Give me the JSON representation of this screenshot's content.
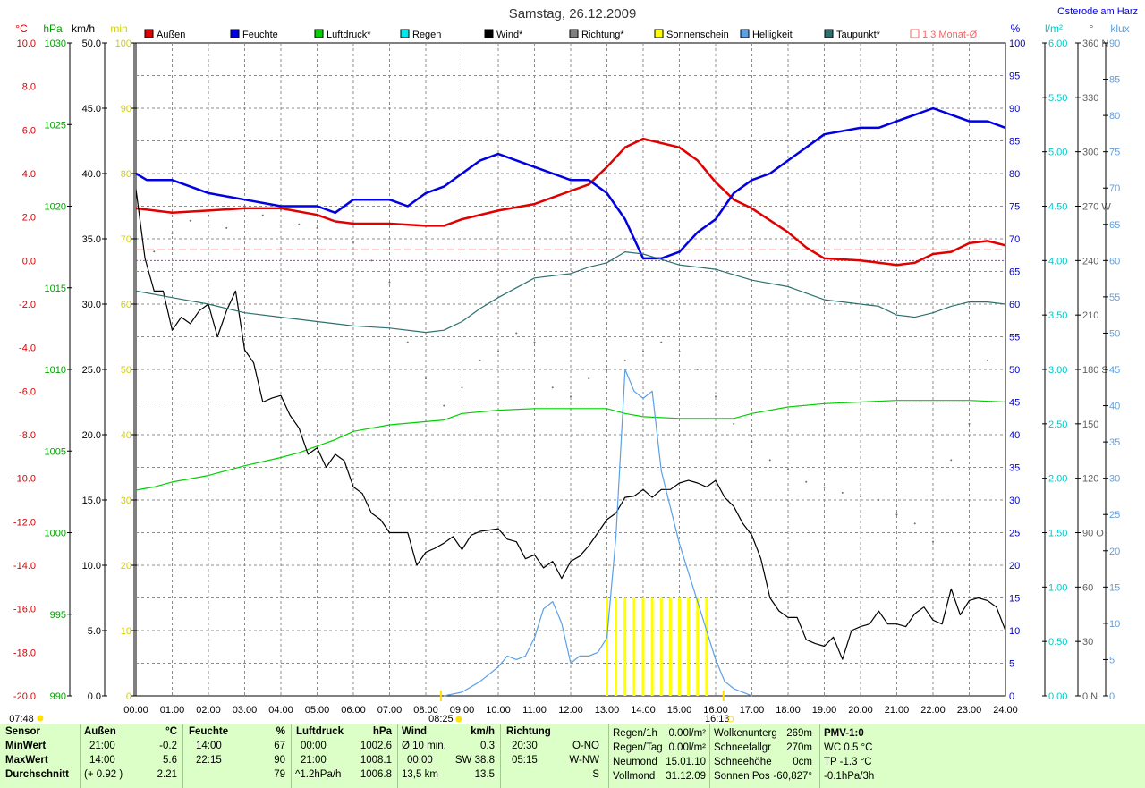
{
  "title": "Samstag, 26.12.2009",
  "location": "Osterode am Harz",
  "legend": [
    {
      "label": "Außen",
      "color": "#e00000",
      "marker": "filled"
    },
    {
      "label": "Feuchte",
      "color": "#0000e0",
      "marker": "filled"
    },
    {
      "label": "Luftdruck*",
      "color": "#00d000",
      "marker": "filled"
    },
    {
      "label": "Regen",
      "color": "#00e8e8",
      "marker": "filled"
    },
    {
      "label": "Wind*",
      "color": "#000000",
      "marker": "filled"
    },
    {
      "label": "Richtung*",
      "color": "#808080",
      "marker": "filled"
    },
    {
      "label": "Sonnenschein",
      "color": "#ffff00",
      "marker": "filled"
    },
    {
      "label": "Helligkeit",
      "color": "#5aa0e6",
      "marker": "filled"
    },
    {
      "label": "Taupunkt*",
      "color": "#2e7070",
      "marker": "filled"
    },
    {
      "label": "1.3 Monat-Ø",
      "color": "#ff6060",
      "marker": "hollow"
    }
  ],
  "axis_units": {
    "temp": "°C",
    "pressure": "hPa",
    "wind": "km/h",
    "sun": "min",
    "humidity": "%",
    "rain": "l/m²",
    "direction": "°",
    "light": "klux"
  },
  "axes": {
    "temp": {
      "labels": [
        "10.0",
        "8.0",
        "6.0",
        "4.0",
        "2.0",
        "0.0",
        "-2.0",
        "-4.0",
        "-6.0",
        "-8.0",
        "-10.0",
        "-12.0",
        "-14.0",
        "-16.0",
        "-18.0",
        "-20.0"
      ],
      "color": "#e00000"
    },
    "pressure": {
      "labels": [
        "1030",
        "1025",
        "1020",
        "1015",
        "1010",
        "1005",
        "1000",
        "995",
        "990"
      ],
      "color": "#00a000"
    },
    "wind": {
      "labels": [
        "50.0",
        "45.0",
        "40.0",
        "35.0",
        "30.0",
        "25.0",
        "20.0",
        "15.0",
        "10.0",
        "5.0",
        "0.0"
      ],
      "color": "#000000"
    },
    "sun": {
      "labels": [
        "100",
        "90",
        "80",
        "70",
        "60",
        "50",
        "40",
        "30",
        "20",
        "10",
        "0"
      ],
      "color": "#d0d000"
    },
    "humidity": {
      "labels": [
        "100",
        "95",
        "90",
        "85",
        "80",
        "75",
        "70",
        "65",
        "60",
        "55",
        "50",
        "45",
        "40",
        "35",
        "30",
        "25",
        "20",
        "15",
        "10",
        "5",
        "0"
      ],
      "color": "#0000e0"
    },
    "rain": {
      "labels": [
        "6.00",
        "5.50",
        "5.00",
        "4.50",
        "4.00",
        "3.50",
        "3.00",
        "2.50",
        "2.00",
        "1.50",
        "1.00",
        "0.50",
        "0.00"
      ],
      "color": "#00c8c8"
    },
    "direction": {
      "labels": [
        "360 N",
        "330",
        "300",
        "270 W",
        "240",
        "210",
        "180 S",
        "150",
        "120",
        "90 O",
        "60",
        "30",
        "0 N"
      ],
      "color": "#606060"
    },
    "light": {
      "labels": [
        "90",
        "85",
        "80",
        "75",
        "70",
        "65",
        "60",
        "55",
        "50",
        "45",
        "40",
        "35",
        "30",
        "25",
        "20",
        "15",
        "10",
        "5",
        "0"
      ],
      "color": "#5aa0e6"
    }
  },
  "time_labels": [
    "00:00",
    "01:00",
    "02:00",
    "03:00",
    "04:00",
    "05:00",
    "06:00",
    "07:00",
    "08:00",
    "09:00",
    "10:00",
    "11:00",
    "12:00",
    "13:00",
    "14:00",
    "15:00",
    "16:00",
    "17:00",
    "18:00",
    "19:00",
    "20:00",
    "21:00",
    "22:00",
    "23:00",
    "24:00"
  ],
  "sun_times": {
    "rise": "08:25",
    "set": "16:13",
    "twilight_start": "07:48"
  },
  "chart_data": {
    "type": "line",
    "title": "Samstag, 26.12.2009",
    "x_unit": "hour of day",
    "xlim": [
      0,
      24
    ],
    "series": [
      {
        "name": "Außen",
        "axis": "temp",
        "unit": "°C",
        "color": "#e00000",
        "x": [
          0,
          1,
          2,
          3,
          4,
          5,
          5.5,
          6,
          7,
          8,
          8.5,
          9,
          10,
          11,
          12,
          12.5,
          13,
          13.5,
          14,
          15,
          15.5,
          16,
          16.5,
          17,
          18,
          18.5,
          19,
          20,
          20.5,
          21,
          21.5,
          22,
          22.5,
          23,
          23.5,
          24
        ],
        "y": [
          2.4,
          2.2,
          2.3,
          2.4,
          2.4,
          2.1,
          1.8,
          1.7,
          1.7,
          1.6,
          1.6,
          1.9,
          2.3,
          2.6,
          3.2,
          3.5,
          4.3,
          5.2,
          5.6,
          5.2,
          4.6,
          3.6,
          2.8,
          2.4,
          1.3,
          0.6,
          0.1,
          0.0,
          -0.1,
          -0.2,
          -0.1,
          0.3,
          0.4,
          0.8,
          0.9,
          0.7
        ]
      },
      {
        "name": "Feuchte",
        "axis": "humidity",
        "unit": "%",
        "color": "#0000e0",
        "x": [
          0,
          0.3,
          1,
          1.5,
          2,
          3,
          4,
          5,
          5.5,
          6,
          7,
          7.5,
          8,
          8.5,
          9,
          9.5,
          10,
          11,
          12,
          12.5,
          13,
          13.5,
          14,
          14.5,
          15,
          15.5,
          16,
          16.5,
          17,
          17.5,
          18,
          18.5,
          19,
          20,
          20.5,
          21,
          21.5,
          22,
          22.5,
          23,
          23.5,
          24
        ],
        "y": [
          80,
          79,
          79,
          78,
          77,
          76,
          75,
          75,
          74,
          76,
          76,
          75,
          77,
          78,
          80,
          82,
          83,
          81,
          79,
          79,
          77,
          73,
          67,
          67,
          68,
          71,
          73,
          77,
          79,
          80,
          82,
          84,
          86,
          87,
          87,
          88,
          89,
          90,
          89,
          88,
          88,
          87
        ]
      },
      {
        "name": "Luftdruck*",
        "axis": "pressure",
        "unit": "hPa",
        "color": "#00d000",
        "x": [
          0,
          0.5,
          1,
          2,
          3,
          4,
          4.5,
          5,
          5.5,
          6,
          7,
          8,
          8.5,
          9,
          10,
          11,
          12,
          13,
          13.5,
          14,
          15,
          16,
          16.5,
          17,
          18,
          19,
          20,
          21,
          22,
          23,
          24
        ],
        "y": [
          1002.6,
          1002.8,
          1003.1,
          1003.5,
          1004.1,
          1004.6,
          1004.9,
          1005.3,
          1005.7,
          1006.2,
          1006.6,
          1006.8,
          1006.9,
          1007.3,
          1007.5,
          1007.6,
          1007.6,
          1007.6,
          1007.3,
          1007.1,
          1007.0,
          1007.0,
          1007.0,
          1007.3,
          1007.7,
          1007.9,
          1008.0,
          1008.1,
          1008.1,
          1008.1,
          1008.0
        ]
      },
      {
        "name": "Wind*",
        "axis": "wind",
        "unit": "km/h",
        "color": "#000000",
        "x": [
          0,
          0.25,
          0.5,
          0.75,
          1,
          1.25,
          1.5,
          1.75,
          2,
          2.25,
          2.5,
          2.75,
          3,
          3.25,
          3.5,
          3.75,
          4,
          4.25,
          4.5,
          4.75,
          5,
          5.25,
          5.5,
          5.75,
          6,
          6.25,
          6.5,
          6.75,
          7,
          7.25,
          7.5,
          7.75,
          8,
          8.25,
          8.5,
          8.75,
          9,
          9.25,
          9.5,
          9.75,
          10,
          10.25,
          10.5,
          10.75,
          11,
          11.25,
          11.5,
          11.75,
          12,
          12.25,
          12.5,
          12.75,
          13,
          13.25,
          13.5,
          13.75,
          14,
          14.25,
          14.5,
          14.75,
          15,
          15.25,
          15.5,
          15.75,
          16,
          16.25,
          16.5,
          16.75,
          17,
          17.25,
          17.5,
          17.75,
          18,
          18.25,
          18.5,
          18.75,
          19,
          19.25,
          19.5,
          19.75,
          20,
          20.25,
          20.5,
          20.75,
          21,
          21.25,
          21.5,
          21.75,
          22,
          22.25,
          22.5,
          22.75,
          23,
          23.25,
          23.5,
          23.75,
          24
        ],
        "y": [
          38.8,
          33.5,
          31.0,
          31.0,
          28.0,
          29.0,
          28.5,
          29.5,
          30.0,
          27.5,
          29.5,
          31.0,
          26.5,
          25.5,
          22.5,
          22.8,
          23.0,
          21.5,
          20.5,
          18.5,
          19.0,
          17.5,
          18.5,
          18.0,
          16.0,
          15.5,
          14.0,
          13.5,
          12.5,
          12.5,
          12.5,
          10.0,
          11.0,
          11.3,
          11.7,
          12.2,
          11.2,
          12.3,
          12.6,
          12.7,
          12.8,
          12.0,
          11.8,
          10.5,
          10.8,
          9.8,
          10.3,
          9.0,
          10.3,
          10.7,
          11.5,
          12.5,
          13.5,
          14.0,
          15.2,
          15.3,
          15.8,
          15.2,
          15.8,
          15.8,
          16.3,
          16.5,
          16.3,
          16.0,
          16.5,
          15.2,
          14.5,
          13.2,
          12.3,
          10.5,
          7.5,
          6.5,
          6.0,
          6.0,
          4.3,
          4.0,
          3.8,
          4.5,
          2.8,
          5.0,
          5.3,
          5.5,
          6.5,
          5.5,
          5.5,
          5.3,
          6.3,
          6.8,
          5.8,
          5.5,
          8.2,
          6.2,
          7.3,
          7.5,
          7.3,
          6.8,
          5.0
        ]
      },
      {
        "name": "Taupunkt*",
        "axis": "temp",
        "unit": "°C",
        "color": "#2e7070",
        "x": [
          0,
          1,
          2,
          3,
          4,
          5,
          6,
          7,
          8,
          8.5,
          9,
          9.5,
          10,
          11,
          12,
          12.5,
          13,
          13.5,
          14,
          15,
          16,
          17,
          18,
          18.5,
          19,
          20,
          20.5,
          21,
          21.5,
          22,
          22.5,
          23,
          23.5,
          24
        ],
        "y": [
          -1.4,
          -1.7,
          -2.0,
          -2.4,
          -2.6,
          -2.8,
          -3.0,
          -3.1,
          -3.3,
          -3.2,
          -2.8,
          -2.2,
          -1.7,
          -0.8,
          -0.6,
          -0.3,
          -0.1,
          0.4,
          0.3,
          -0.2,
          -0.4,
          -0.9,
          -1.2,
          -1.5,
          -1.8,
          -2.0,
          -2.1,
          -2.5,
          -2.6,
          -2.4,
          -2.1,
          -1.9,
          -1.9,
          -2.0
        ]
      },
      {
        "name": "Helligkeit",
        "axis": "light",
        "unit": "klux",
        "color": "#5aa0e6",
        "x": [
          8.5,
          9,
          9.5,
          10,
          10.25,
          10.5,
          10.75,
          11,
          11.25,
          11.5,
          11.75,
          12,
          12.25,
          12.5,
          12.75,
          13,
          13.25,
          13.5,
          13.75,
          14,
          14.25,
          14.5,
          14.75,
          15,
          15.25,
          15.5,
          15.75,
          16,
          16.25,
          16.5,
          16.75,
          17
        ],
        "y": [
          0,
          0.5,
          2,
          4,
          5.5,
          5,
          5.5,
          8,
          12,
          13,
          10,
          4.5,
          5.5,
          5.5,
          6,
          8,
          22,
          45,
          42,
          41,
          42,
          31,
          26,
          21,
          17,
          13,
          9,
          5,
          2,
          1,
          0.5,
          0
        ]
      },
      {
        "name": "Richtung*",
        "axis": "direction",
        "unit": "°",
        "style": "dots",
        "color": "#707070",
        "x": [
          0.5,
          1,
          1.5,
          2,
          2.5,
          3,
          3.5,
          4,
          4.5,
          5,
          5.5,
          6,
          6.5,
          7,
          7.5,
          8,
          8.5,
          9,
          9.5,
          10,
          10.5,
          11,
          11.5,
          12,
          12.5,
          13,
          13.5,
          14,
          14.5,
          15,
          15.5,
          16,
          16.5,
          17,
          17.5,
          18,
          18.5,
          19,
          19.5,
          20,
          20.5,
          21,
          21.5,
          22,
          22.5,
          23,
          23.5,
          24
        ],
        "y": [
          245,
          255,
          262,
          265,
          258,
          270,
          265,
          268,
          260,
          258,
          262,
          250,
          240,
          228,
          195,
          175,
          160,
          170,
          185,
          190,
          200,
          195,
          170,
          165,
          175,
          180,
          185,
          190,
          195,
          190,
          180,
          165,
          150,
          140,
          130,
          125,
          118,
          115,
          112,
          110,
          108,
          100,
          95,
          85,
          130,
          150,
          185,
          160
        ]
      }
    ],
    "sunshine_bars": {
      "x": [
        13.0,
        13.25,
        13.5,
        13.75,
        14.0,
        14.25,
        14.5,
        14.75,
        15.0,
        15.25,
        15.5,
        15.75
      ],
      "values": [
        15,
        15,
        15,
        15,
        15,
        15,
        15,
        15,
        15,
        15,
        15,
        15
      ],
      "unit": "min",
      "color": "#ffff00"
    },
    "reference_lines": [
      {
        "name": "1.3 Monat-Ø",
        "axis": "temp",
        "value": 0.5,
        "style": "dashed",
        "color": "#ff8080"
      },
      {
        "name": "0 °C",
        "axis": "temp",
        "value": 0.0,
        "style": "dashed",
        "color": "#ff00ff"
      }
    ],
    "axis_ranges": {
      "temp": [
        -20,
        10
      ],
      "pressure": [
        990,
        1030
      ],
      "wind": [
        0,
        50
      ],
      "sun": [
        0,
        100
      ],
      "humidity": [
        0,
        100
      ],
      "rain": [
        0,
        6
      ],
      "direction": [
        0,
        360
      ],
      "light": [
        0,
        90
      ]
    },
    "grid": true
  },
  "footer": {
    "sensor": {
      "title": "Sensor",
      "rows": [
        "MinWert",
        "MaxWert",
        "Durchschnitt"
      ]
    },
    "aussen": {
      "title": "Außen",
      "unit": "°C",
      "rows": [
        [
          "21:00",
          "-0.2"
        ],
        [
          "14:00",
          "5.6"
        ],
        [
          "(+ 0.92 )",
          "2.21"
        ]
      ]
    },
    "feuchte": {
      "title": "Feuchte",
      "unit": "%",
      "rows": [
        [
          "14:00",
          "67"
        ],
        [
          "22:15",
          "90"
        ],
        [
          "",
          "79"
        ]
      ]
    },
    "luftdruck": {
      "title": "Luftdruck",
      "unit": "hPa",
      "rows": [
        [
          "00:00",
          "1002.6"
        ],
        [
          "21:00",
          "1008.1"
        ],
        [
          "^1.2hPa/h",
          "1006.8"
        ]
      ]
    },
    "wind": {
      "title": "Wind",
      "unit": "km/h",
      "rows": [
        [
          "Ø 10 min.",
          "0.3"
        ],
        [
          "00:00",
          "SW 38.8"
        ],
        [
          "13,5 km",
          "13.5"
        ]
      ]
    },
    "richtung": {
      "title": "Richtung",
      "rows": [
        [
          "20:30",
          "O-NO"
        ],
        [
          "05:15",
          "W-NW"
        ],
        [
          "",
          "S"
        ]
      ]
    },
    "regen": {
      "rows": [
        [
          "Regen/1h",
          "0.00l/m²"
        ],
        [
          "Regen/Tag",
          "0.00l/m²"
        ],
        [
          "Neumond",
          "15.01.10"
        ],
        [
          "Vollmond",
          "31.12.09"
        ]
      ]
    },
    "wolken": {
      "rows": [
        [
          "Wolkenunterg",
          "269m"
        ],
        [
          "Schneefallgr",
          "270m"
        ],
        [
          "Schneehöhe",
          "0cm"
        ],
        [
          "Sonnen Pos",
          "-60,827°"
        ]
      ]
    },
    "pmv": {
      "rows": [
        "PMV-1:0",
        "WC 0.5 °C",
        "TP -1.3 °C",
        "-0.1hPa/3h"
      ]
    }
  }
}
